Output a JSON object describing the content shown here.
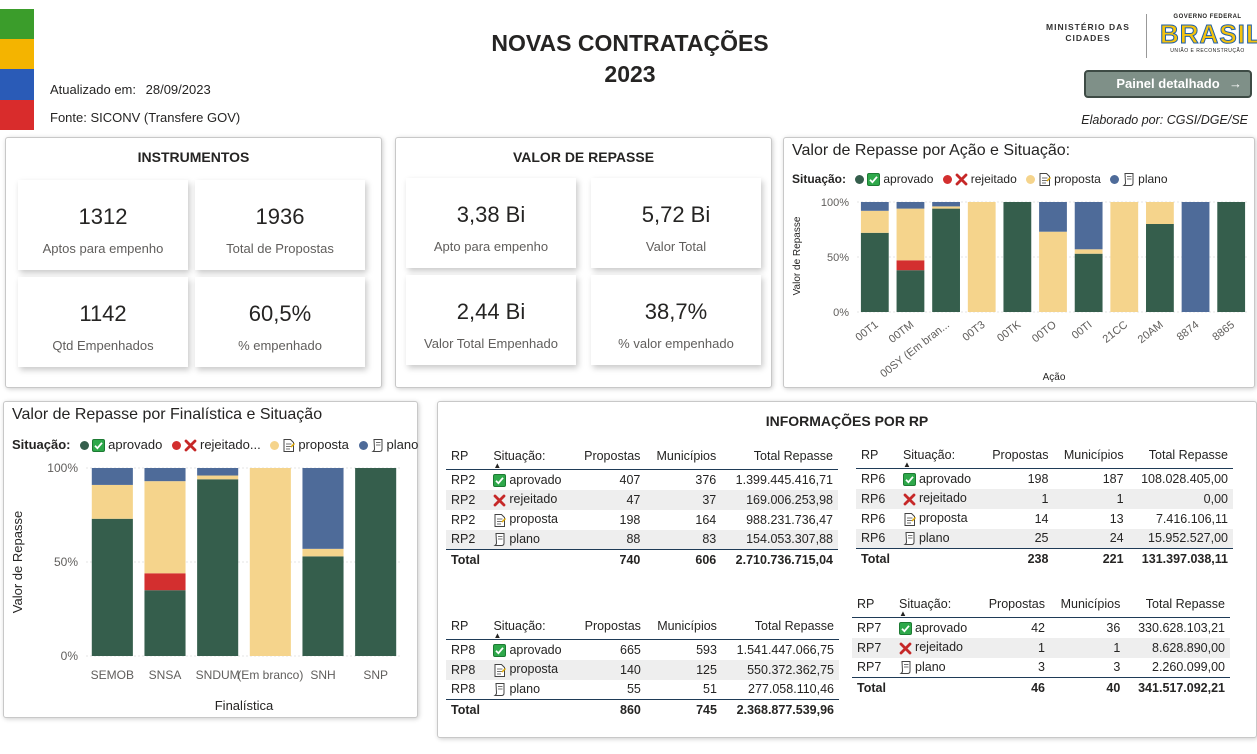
{
  "colors": {
    "aprovado": "#355e4c",
    "rejeitado": "#d32f2f",
    "proposta": "#f5d48c",
    "plano": "#4e6b99",
    "stripe": [
      "#3b9d2b",
      "#f4b400",
      "#2a5bb7",
      "#d92c2c"
    ]
  },
  "header": {
    "title_line1": "NOVAS CONTRATAÇÕES",
    "title_line2": "2023",
    "updated_label": "Atualizado em:",
    "updated_value": "28/09/2023",
    "source": "Fonte: SICONV (Transfere GOV)",
    "ministry_line1": "MINISTÉRIO DAS",
    "ministry_line2": "CIDADES",
    "gov_line1": "GOVERNO FEDERAL",
    "gov_brand": "BRASIL",
    "gov_line2": "UNIÃO E RECONSTRUÇÃO",
    "button_label": "Painel detalhado",
    "elaborado": "Elaborado por: CGSI/DGE/SE"
  },
  "instrumentos": {
    "title": "INSTRUMENTOS",
    "cards": [
      {
        "value": "1312",
        "label": "Aptos para empenho"
      },
      {
        "value": "1936",
        "label": "Total de Propostas"
      },
      {
        "value": "1142",
        "label": "Qtd Empenhados"
      },
      {
        "value": "60,5%",
        "label": "% empenhado"
      }
    ]
  },
  "valor_repasse": {
    "title": "VALOR DE REPASSE",
    "cards": [
      {
        "value": "3,38 Bi",
        "label": "Apto para empenho"
      },
      {
        "value": "5,72 Bi",
        "label": "Valor Total"
      },
      {
        "value": "2,44 Bi",
        "label": "Valor Total Empenhado"
      },
      {
        "value": "38,7%",
        "label": "% valor empenhado"
      }
    ]
  },
  "chart_acao": {
    "title": "Valor de Repasse por Ação e Situação:",
    "legend_title": "Situação:",
    "legend": [
      "aprovado",
      "rejeitado",
      "proposta",
      "plano"
    ]
  },
  "chart_final": {
    "title": "Valor de Repasse por Finalística e Situação",
    "legend_title": "Situação:",
    "legend": [
      "aprovado",
      "rejeitado...",
      "proposta",
      "plano"
    ]
  },
  "chart_data": [
    {
      "type": "bar",
      "stacked": "percent",
      "title": "Valor de Repasse por Ação e Situação:",
      "xlabel": "Ação",
      "ylabel": "Valor de Repasse",
      "ylim": [
        0,
        100
      ],
      "yticks": [
        "0%",
        "50%",
        "100%"
      ],
      "categories": [
        "00T1",
        "00TM",
        "00SY (Em bran...",
        "00T3",
        "00TK",
        "00TO",
        "00TI",
        "21CC",
        "20AM",
        "8874",
        "8865"
      ],
      "series": [
        {
          "name": "aprovado",
          "values": [
            72,
            38,
            94,
            0,
            100,
            0,
            53,
            0,
            80,
            0,
            100
          ]
        },
        {
          "name": "rejeitado",
          "values": [
            0,
            9,
            0,
            0,
            0,
            0,
            0,
            0,
            0,
            0,
            0
          ]
        },
        {
          "name": "proposta",
          "values": [
            20,
            47,
            2,
            100,
            0,
            73,
            4,
            100,
            20,
            0,
            0
          ]
        },
        {
          "name": "plano",
          "values": [
            8,
            6,
            4,
            0,
            0,
            27,
            43,
            0,
            0,
            100,
            0
          ]
        }
      ]
    },
    {
      "type": "bar",
      "stacked": "percent",
      "title": "Valor de Repasse por Finalística e Situação",
      "xlabel": "Finalística",
      "ylabel": "Valor de Repasse",
      "ylim": [
        0,
        100
      ],
      "yticks": [
        "0%",
        "50%",
        "100%"
      ],
      "categories": [
        "SEMOB",
        "SNSA",
        "SNDUM",
        "(Em branco)",
        "SNH",
        "SNP"
      ],
      "series": [
        {
          "name": "aprovado",
          "values": [
            73,
            35,
            94,
            0,
            53,
            100
          ]
        },
        {
          "name": "rejeitado",
          "values": [
            0,
            9,
            0,
            0,
            0,
            0
          ]
        },
        {
          "name": "proposta",
          "values": [
            18,
            49,
            2,
            100,
            4,
            0
          ]
        },
        {
          "name": "plano",
          "values": [
            9,
            7,
            4,
            0,
            43,
            0
          ]
        }
      ]
    }
  ],
  "info_rp": {
    "title": "INFORMAÇÕES POR RP",
    "headers": [
      "RP",
      "Situação:",
      "Propostas",
      "Municípios",
      "Total Repasse"
    ],
    "tables": [
      {
        "rows": [
          {
            "rp": "RP2",
            "sit": "aprovado",
            "icon": "check",
            "prop": "407",
            "mun": "376",
            "total": "1.399.445.416,71"
          },
          {
            "rp": "RP2",
            "sit": "rejeitado",
            "icon": "x",
            "prop": "47",
            "mun": "37",
            "total": "169.006.253,98"
          },
          {
            "rp": "RP2",
            "sit": "proposta",
            "icon": "doc",
            "prop": "198",
            "mun": "164",
            "total": "988.231.736,47"
          },
          {
            "rp": "RP2",
            "sit": "plano",
            "icon": "scroll",
            "prop": "88",
            "mun": "83",
            "total": "154.053.307,88"
          }
        ],
        "total": {
          "label": "Total",
          "prop": "740",
          "mun": "606",
          "total": "2.710.736.715,04"
        }
      },
      {
        "rows": [
          {
            "rp": "RP6",
            "sit": "aprovado",
            "icon": "check",
            "prop": "198",
            "mun": "187",
            "total": "108.028.405,00"
          },
          {
            "rp": "RP6",
            "sit": "rejeitado",
            "icon": "x",
            "prop": "1",
            "mun": "1",
            "total": "0,00"
          },
          {
            "rp": "RP6",
            "sit": "proposta",
            "icon": "doc",
            "prop": "14",
            "mun": "13",
            "total": "7.416.106,11"
          },
          {
            "rp": "RP6",
            "sit": "plano",
            "icon": "scroll",
            "prop": "25",
            "mun": "24",
            "total": "15.952.527,00"
          }
        ],
        "total": {
          "label": "Total",
          "prop": "238",
          "mun": "221",
          "total": "131.397.038,11"
        }
      },
      {
        "rows": [
          {
            "rp": "RP8",
            "sit": "aprovado",
            "icon": "check",
            "prop": "665",
            "mun": "593",
            "total": "1.541.447.066,75"
          },
          {
            "rp": "RP8",
            "sit": "proposta",
            "icon": "doc",
            "prop": "140",
            "mun": "125",
            "total": "550.372.362,75"
          },
          {
            "rp": "RP8",
            "sit": "plano",
            "icon": "scroll",
            "prop": "55",
            "mun": "51",
            "total": "277.058.110,46"
          }
        ],
        "total": {
          "label": "Total",
          "prop": "860",
          "mun": "745",
          "total": "2.368.877.539,96"
        }
      },
      {
        "rows": [
          {
            "rp": "RP7",
            "sit": "aprovado",
            "icon": "check",
            "prop": "42",
            "mun": "36",
            "total": "330.628.103,21"
          },
          {
            "rp": "RP7",
            "sit": "rejeitado",
            "icon": "x",
            "prop": "1",
            "mun": "1",
            "total": "8.628.890,00"
          },
          {
            "rp": "RP7",
            "sit": "plano",
            "icon": "scroll",
            "prop": "3",
            "mun": "3",
            "total": "2.260.099,00"
          }
        ],
        "total": {
          "label": "Total",
          "prop": "46",
          "mun": "40",
          "total": "341.517.092,21"
        }
      }
    ]
  }
}
